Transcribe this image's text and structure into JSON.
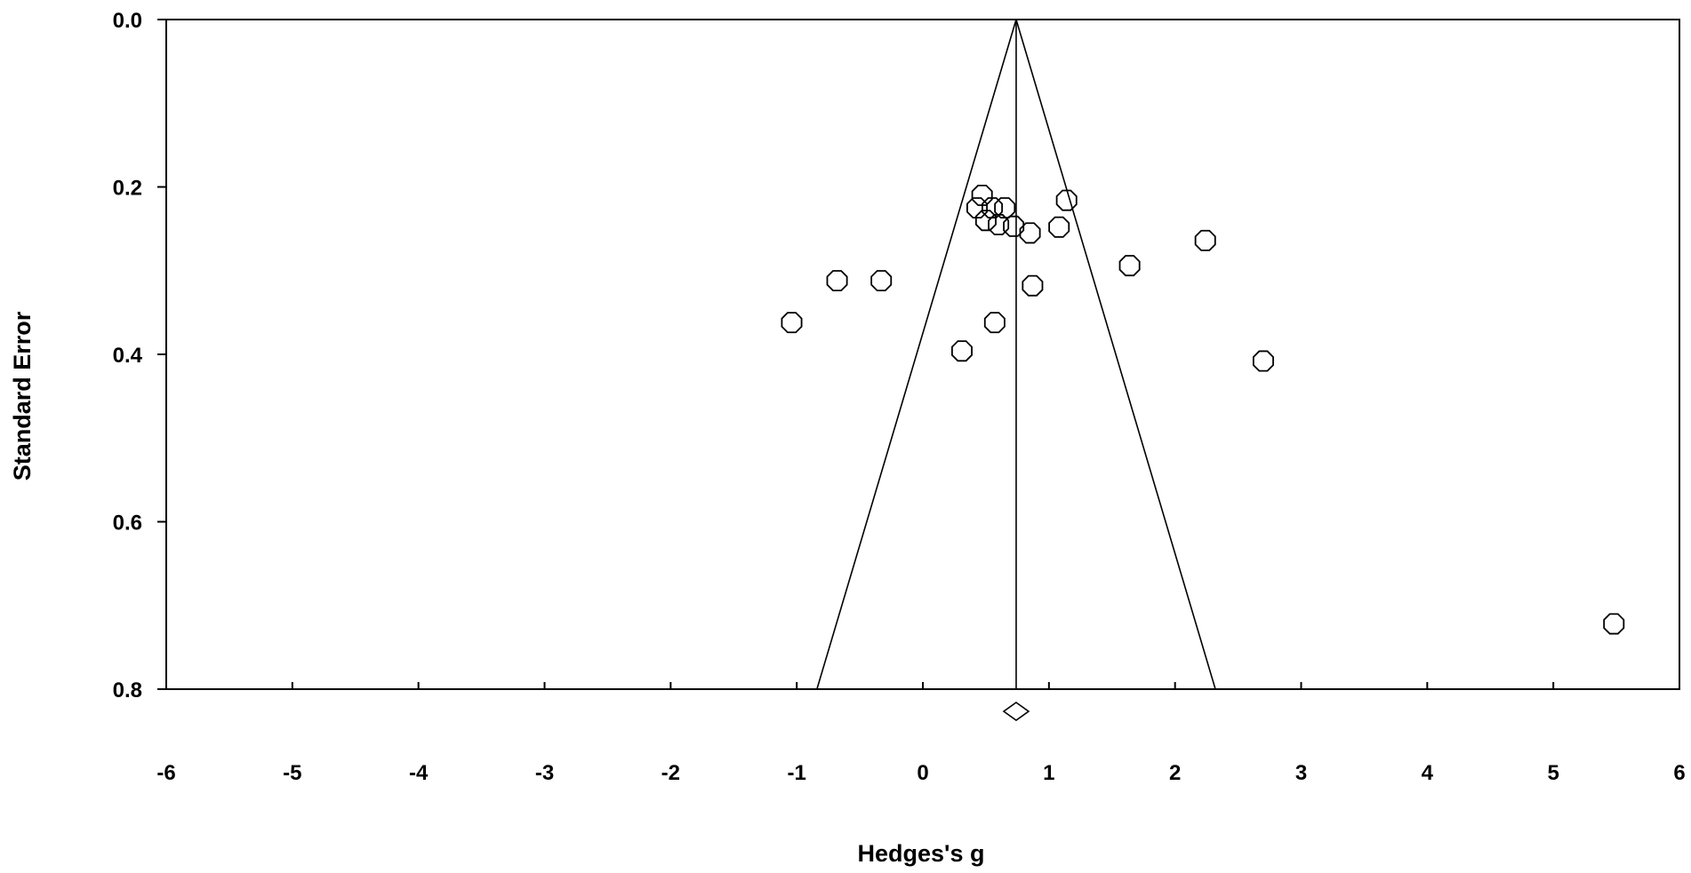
{
  "chart_data": {
    "type": "scatter",
    "subtype": "funnel-plot",
    "xlabel": "Hedges's g",
    "ylabel": "Standard Error",
    "xlim": [
      -6,
      6
    ],
    "ylim": [
      0.8,
      0.0
    ],
    "y_axis_inverted": true,
    "x_ticks": [
      "-6",
      "-5",
      "-4",
      "-3",
      "-2",
      "-1",
      "0",
      "1",
      "2",
      "3",
      "4",
      "5",
      "6"
    ],
    "y_ticks": [
      "0.0",
      "0.2",
      "0.4",
      "0.6",
      "0.8"
    ],
    "pooled_effect": 0.74,
    "funnel": {
      "apex": [
        0.74,
        0.0
      ],
      "base_left": [
        -0.84,
        0.8
      ],
      "base_right": [
        2.32,
        0.8
      ]
    },
    "summary_diamond": {
      "x": 0.74
    },
    "points": [
      {
        "x": 0.47,
        "y": 0.21
      },
      {
        "x": 0.43,
        "y": 0.225
      },
      {
        "x": 0.55,
        "y": 0.225
      },
      {
        "x": 0.65,
        "y": 0.225
      },
      {
        "x": 0.5,
        "y": 0.24
      },
      {
        "x": 0.6,
        "y": 0.245
      },
      {
        "x": 0.72,
        "y": 0.247
      },
      {
        "x": 0.85,
        "y": 0.255
      },
      {
        "x": 1.08,
        "y": 0.248
      },
      {
        "x": 1.14,
        "y": 0.216
      },
      {
        "x": 1.64,
        "y": 0.294
      },
      {
        "x": 2.24,
        "y": 0.264
      },
      {
        "x": -0.68,
        "y": 0.312
      },
      {
        "x": -0.33,
        "y": 0.312
      },
      {
        "x": 0.87,
        "y": 0.318
      },
      {
        "x": -1.04,
        "y": 0.362
      },
      {
        "x": 0.57,
        "y": 0.362
      },
      {
        "x": 0.31,
        "y": 0.396
      },
      {
        "x": 2.7,
        "y": 0.408
      },
      {
        "x": 5.48,
        "y": 0.722
      }
    ]
  }
}
